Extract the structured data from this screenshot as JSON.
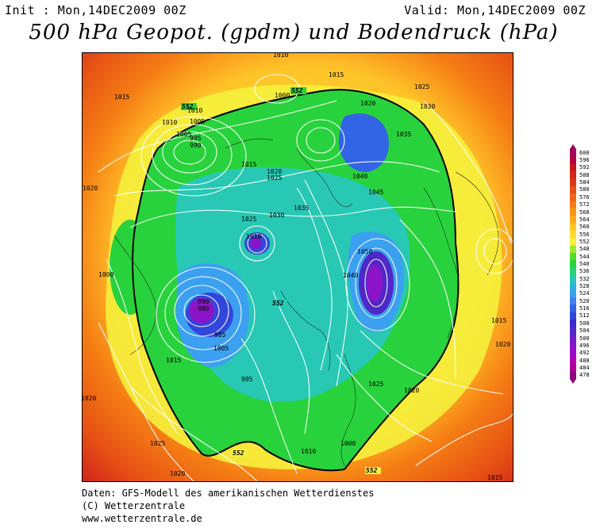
{
  "header": {
    "init": "Init : Mon,14DEC2009 00Z",
    "valid": "Valid: Mon,14DEC2009 00Z",
    "title": "500 hPa Geopot. (gpdm) und Bodendruck (hPa)"
  },
  "legend": {
    "values": [
      "600",
      "596",
      "592",
      "588",
      "584",
      "580",
      "576",
      "572",
      "568",
      "564",
      "560",
      "556",
      "552",
      "548",
      "544",
      "540",
      "536",
      "532",
      "528",
      "524",
      "520",
      "516",
      "512",
      "508",
      "504",
      "500",
      "496",
      "492",
      "488",
      "484",
      "478"
    ],
    "colors": [
      "#a0005a",
      "#b4003c",
      "#c8141e",
      "#d22814",
      "#dc3c14",
      "#e65014",
      "#f06414",
      "#f57d14",
      "#fa9619",
      "#ffaa1e",
      "#ffc328",
      "#ffdc32",
      "#f5f03c",
      "#a0e632",
      "#50dc28",
      "#28d23c",
      "#28d278",
      "#28c8b4",
      "#28b4dc",
      "#3ca0f0",
      "#3c82f0",
      "#3264e6",
      "#3246dc",
      "#3c28d2",
      "#5028c8",
      "#6e1ec8",
      "#8c14c8",
      "#a00ac8",
      "#b400b4",
      "#aa0096",
      "#8c0082"
    ]
  },
  "map": {
    "labels_552": [
      "552",
      "552",
      "552",
      "552",
      "552"
    ],
    "pressure_labels": [
      "1010",
      "1015",
      "1025",
      "1000",
      "1020",
      "1030",
      "1035",
      "1010",
      "1015",
      "1005",
      "995",
      "990",
      "1040",
      "1045",
      "1050",
      "1025",
      "1020",
      "1000",
      "1005",
      "1010",
      "1015",
      "1020",
      "1025",
      "1030",
      "1035",
      "1040",
      "1010",
      "990",
      "980",
      "985",
      "995",
      "1005",
      "1015",
      "1020",
      "1015",
      "1020",
      "1025",
      "1020",
      "1000",
      "1010",
      "1015",
      "1020",
      "1025"
    ]
  },
  "footer": {
    "line1": "Daten: GFS-Modell des amerikanischen Wetterdienstes",
    "line2": "(C) Wetterzentrale",
    "line3": "www.wetterzentrale.de"
  }
}
